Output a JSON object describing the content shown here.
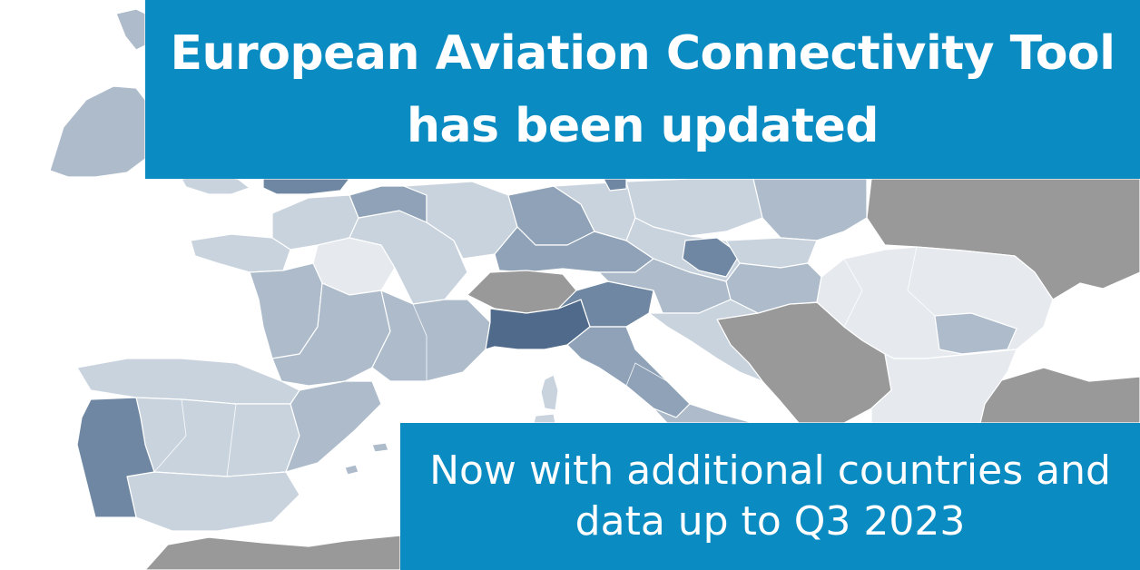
{
  "colors": {
    "banner": "#0a8bc2",
    "water": "#ffffff",
    "non_member": "#999999",
    "shade_lightest": "#e6eaef",
    "shade_light": "#c9d3de",
    "shade_mid_light": "#adbbcb",
    "shade_mid": "#8fa2b8",
    "shade_dark": "#6f87a2",
    "shade_darkest": "#4f6a8b"
  },
  "title": {
    "lines": [
      "European Aviation Connectivity Tool",
      "has been updated"
    ]
  },
  "subtitle": {
    "lines": [
      "Now with additional countries and",
      "data up to Q3 2023"
    ]
  },
  "map": {
    "regions": [
      {
        "id": "ireland",
        "shade": "shade_mid_light"
      },
      {
        "id": "uk-south",
        "shade": "shade_light"
      },
      {
        "id": "uk-london",
        "shade": "shade_dark"
      },
      {
        "id": "france-brittany",
        "shade": "shade_light"
      },
      {
        "id": "france-west",
        "shade": "shade_mid_light"
      },
      {
        "id": "france-north",
        "shade": "shade_light"
      },
      {
        "id": "france-paris",
        "shade": "shade_lightest"
      },
      {
        "id": "france-east",
        "shade": "shade_light"
      },
      {
        "id": "france-southwest",
        "shade": "shade_mid_light"
      },
      {
        "id": "france-southeast",
        "shade": "shade_mid_light"
      },
      {
        "id": "benelux",
        "shade": "shade_mid"
      },
      {
        "id": "germany-west",
        "shade": "shade_light"
      },
      {
        "id": "germany-central",
        "shade": "shade_mid"
      },
      {
        "id": "germany-south",
        "shade": "shade_mid"
      },
      {
        "id": "germany-east",
        "shade": "shade_light"
      },
      {
        "id": "poland-west",
        "shade": "shade_light"
      },
      {
        "id": "poland-east",
        "shade": "shade_mid_light"
      },
      {
        "id": "czechia",
        "shade": "shade_light"
      },
      {
        "id": "prague",
        "shade": "shade_dark"
      },
      {
        "id": "slovakia",
        "shade": "shade_light"
      },
      {
        "id": "austria",
        "shade": "shade_mid_light"
      },
      {
        "id": "hungary",
        "shade": "shade_mid_light"
      },
      {
        "id": "switzerland",
        "shade": "non_member"
      },
      {
        "id": "italy-northwest",
        "shade": "shade_darkest"
      },
      {
        "id": "italy-northeast",
        "shade": "shade_dark"
      },
      {
        "id": "italy-center",
        "shade": "shade_mid"
      },
      {
        "id": "italy-south",
        "shade": "shade_mid_light"
      },
      {
        "id": "sardinia",
        "shade": "shade_light"
      },
      {
        "id": "corsica",
        "shade": "shade_light"
      },
      {
        "id": "slovenia-croatia",
        "shade": "shade_light"
      },
      {
        "id": "balkans-nonmember",
        "shade": "non_member"
      },
      {
        "id": "romania",
        "shade": "shade_lightest"
      },
      {
        "id": "bucharest",
        "shade": "shade_mid_light"
      },
      {
        "id": "bulgaria",
        "shade": "shade_lightest"
      },
      {
        "id": "ukraine-belarus",
        "shade": "non_member"
      },
      {
        "id": "turkey",
        "shade": "non_member"
      },
      {
        "id": "north-africa",
        "shade": "non_member"
      },
      {
        "id": "spain-north",
        "shade": "shade_light"
      },
      {
        "id": "spain-center",
        "shade": "shade_light"
      },
      {
        "id": "spain-east",
        "shade": "shade_mid_light"
      },
      {
        "id": "spain-south",
        "shade": "shade_light"
      },
      {
        "id": "portugal",
        "shade": "shade_dark"
      },
      {
        "id": "balearics",
        "shade": "shade_mid_light"
      }
    ]
  }
}
